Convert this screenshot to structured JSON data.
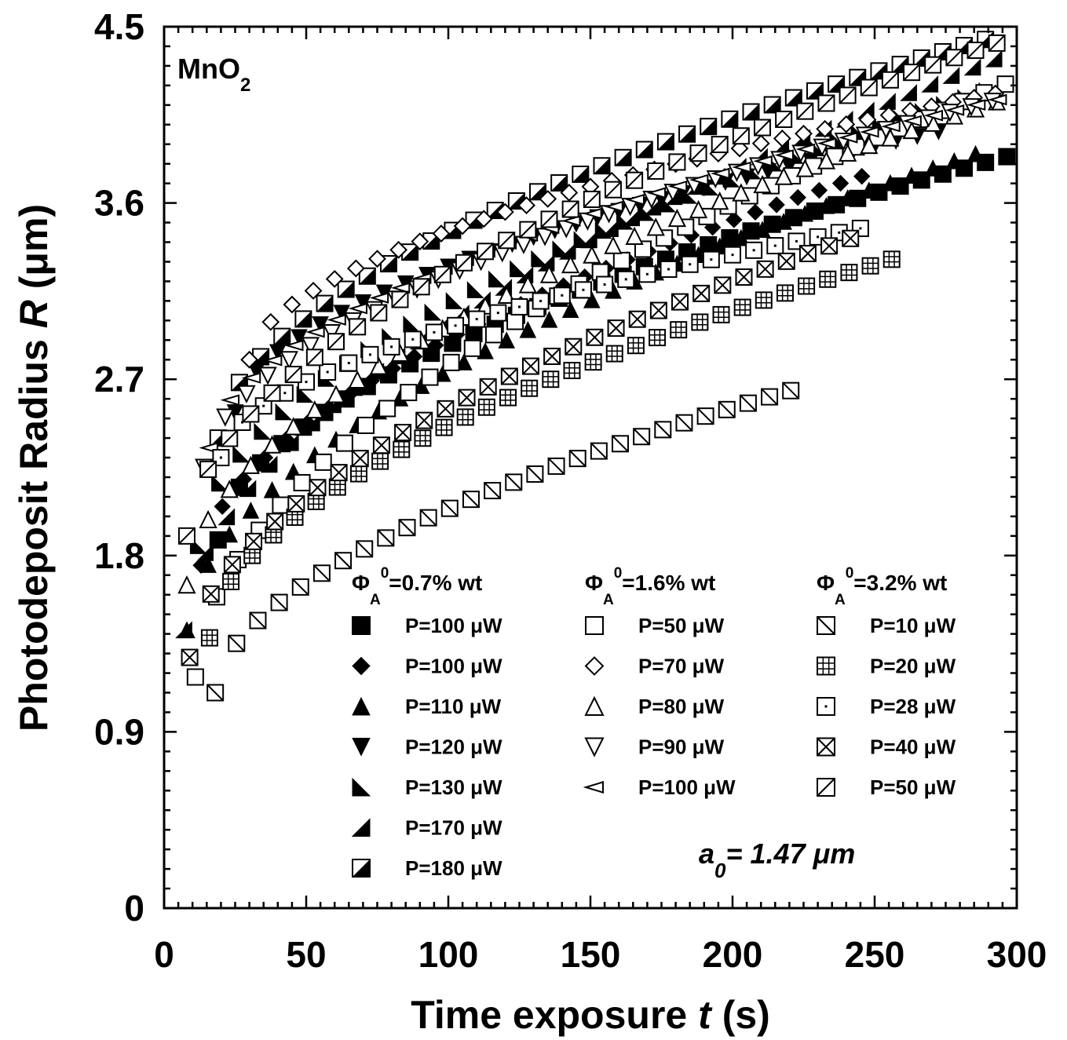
{
  "chart_data": {
    "type": "scatter",
    "xlabel": "Time exposure",
    "xvar": "t",
    "xunit": "(s)",
    "ylabel": "Photodeposit Radius",
    "yvar": "R",
    "yunit": "(μm)",
    "xlim": [
      0,
      300
    ],
    "ylim": [
      0,
      4.5
    ],
    "xticks": [
      "0",
      "50",
      "100",
      "150",
      "200",
      "250",
      "300"
    ],
    "yticks": [
      "0",
      "0.9",
      "1.8",
      "2.7",
      "3.6",
      "4.5"
    ],
    "material": {
      "base": "MnO",
      "sub": "2"
    },
    "annotation": {
      "base": "a",
      "sub": "0",
      "rest": "= 1.47 μm"
    },
    "legend_placement": "inside-bottom",
    "groups": [
      {
        "head": "Φ",
        "sub": "A",
        "sup": "0",
        "rest": "=0.7% wt"
      },
      {
        "head": "Φ",
        "sub": "A",
        "sup": "0",
        "rest": "=1.6% wt"
      },
      {
        "head": "Φ",
        "sub": "A",
        "sup": "0",
        "rest": "=3.2% wt"
      }
    ],
    "series": [
      {
        "group": 0,
        "name": "P=100 μW",
        "marker": "square-filled",
        "t0": 19,
        "dt": 7.5,
        "r0": 1.88,
        "rmax": 3.85,
        "n": 40
      },
      {
        "group": 0,
        "name": "P=100 μW",
        "marker": "diamond-filled",
        "t0": 13,
        "dt": 7.5,
        "r0": 1.75,
        "rmax": 3.98,
        "n": 32
      },
      {
        "group": 0,
        "name": "P=110 μW",
        "marker": "triangle-up-filled",
        "t0": 8,
        "dt": 7.5,
        "r0": 1.42,
        "rmax": 3.92,
        "n": 38
      },
      {
        "group": 0,
        "name": "P=120 μW",
        "marker": "triangle-down-filled",
        "t0": 25,
        "dt": 7.5,
        "r0": 2.53,
        "rmax": 4.05,
        "n": 34
      },
      {
        "group": 0,
        "name": "P=130 μW",
        "marker": "triangle-right-filled",
        "t0": 12,
        "dt": 7.5,
        "r0": 1.85,
        "rmax": 4.22,
        "n": 38
      },
      {
        "group": 0,
        "name": "P=170 μW",
        "marker": "triangle-left-filled",
        "t0": 7,
        "dt": 7.5,
        "r0": 1.42,
        "rmax": 4.38,
        "n": 39
      },
      {
        "group": 0,
        "name": "P=180 μW",
        "marker": "square-half",
        "t0": 19,
        "dt": 7.5,
        "r0": 2.4,
        "rmax": 4.48,
        "n": 37
      },
      {
        "group": 1,
        "name": "P=50 μW",
        "marker": "square-open",
        "t0": 11,
        "dt": 7.5,
        "r0": 1.18,
        "rmax": 4.23,
        "n": 39
      },
      {
        "group": 1,
        "name": "P=70 μW",
        "marker": "diamond-open",
        "t0": 30,
        "dt": 7.5,
        "r0": 2.8,
        "rmax": 4.18,
        "n": 36
      },
      {
        "group": 1,
        "name": "P=80 μW",
        "marker": "triangle-up-open",
        "t0": 8,
        "dt": 7.5,
        "r0": 1.65,
        "rmax": 4.15,
        "n": 39
      },
      {
        "group": 1,
        "name": "P=90 μW",
        "marker": "triangle-down-open",
        "t0": 14,
        "dt": 7.5,
        "r0": 2.25,
        "rmax": 4.15,
        "n": 38
      },
      {
        "group": 1,
        "name": "P=100 μW",
        "marker": "triangle-left-open",
        "t0": 16,
        "dt": 7.5,
        "r0": 2.35,
        "rmax": 4.15,
        "n": 38
      },
      {
        "group": 2,
        "name": "P=10 μW",
        "marker": "square-diag",
        "t0": 18,
        "dt": 7.5,
        "r0": 1.1,
        "rmax": 2.95,
        "n": 28
      },
      {
        "group": 2,
        "name": "P=20 μW",
        "marker": "square-cross",
        "t0": 16,
        "dt": 7.5,
        "r0": 1.38,
        "rmax": 3.5,
        "n": 33
      },
      {
        "group": 2,
        "name": "P=28 μW",
        "marker": "square-dot",
        "t0": 20,
        "dt": 7.5,
        "r0": 2.3,
        "rmax": 3.62,
        "n": 31
      },
      {
        "group": 2,
        "name": "P=40 μW",
        "marker": "square-x",
        "t0": 9,
        "dt": 7.5,
        "r0": 1.28,
        "rmax": 3.7,
        "n": 32
      },
      {
        "group": 2,
        "name": "P=50 μW",
        "marker": "square-antidiag",
        "t0": 8,
        "dt": 7.5,
        "r0": 1.9,
        "rmax": 4.45,
        "n": 39
      }
    ]
  }
}
